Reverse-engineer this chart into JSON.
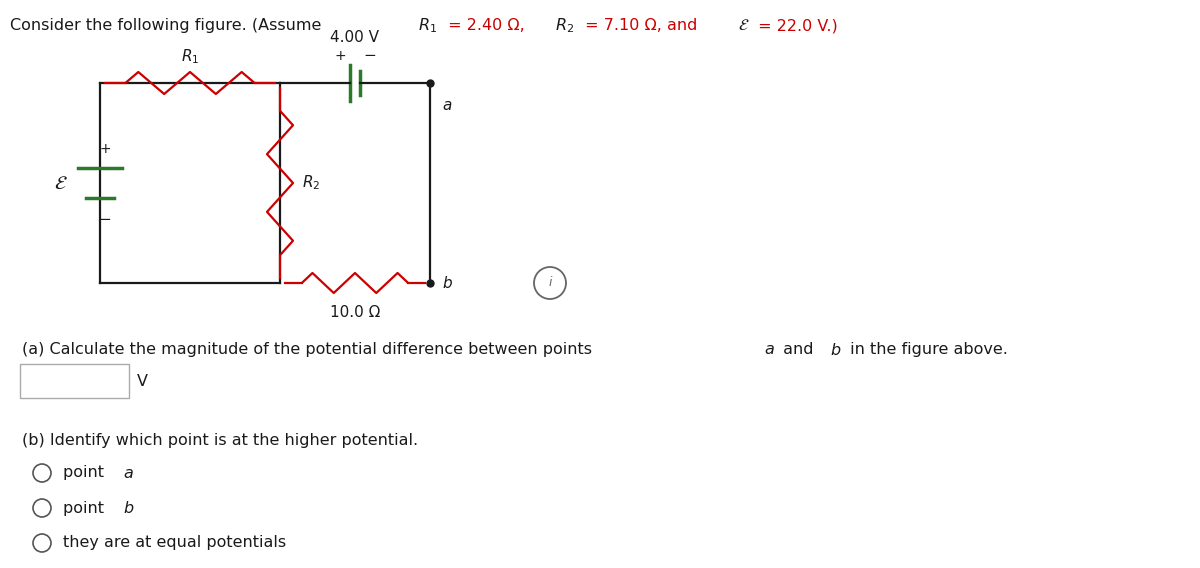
{
  "bg_color": "#f0f0f0",
  "wire_color": "#1a1a1a",
  "red_color": "#cc0000",
  "green_color": "#2a7a2a",
  "dark_color": "#1a1a1a",
  "gray_color": "#888888",
  "volt_label": "4.00 V",
  "bottom_res_label": "10.0 Ω",
  "R1_label": "$R_1$",
  "R2_label": "$R_2$",
  "epsilon_label": "$\\mathcal{E}$",
  "point_a_label": "$a$",
  "point_b_label": "$b$",
  "plus_label": "+",
  "minus_label": "−",
  "title_part1": "Consider the following figure. (Assume ",
  "title_R1": "$R_1$",
  "title_val1": " = 2.40 Ω, ",
  "title_R2": "$R_2$",
  "title_val2": " = 7.10 Ω, and ",
  "title_eps": "$\\mathcal{E}$",
  "title_val3": " = 22.0 V.)",
  "part_a_pre": "(a) Calculate the magnitude of the potential difference between points ",
  "part_a_a": "$a$",
  "part_a_mid": " and ",
  "part_a_b": "$b$",
  "part_a_post": " in the figure above.",
  "part_b_text": "(b) Identify which point is at the higher potential.",
  "opt1_text": "point ",
  "opt1_var": "$a$",
  "opt2_text": "point ",
  "opt2_var": "$b$",
  "opt3_text": "they are at equal potentials",
  "units_V": "V"
}
